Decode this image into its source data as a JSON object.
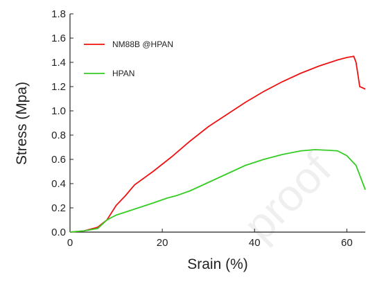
{
  "chart_data": {
    "type": "line",
    "x_label": "Srain (%)",
    "y_label": "Stress (Mpa)",
    "watermark": "proof",
    "xlim": [
      0,
      64
    ],
    "ylim": [
      0,
      1.8
    ],
    "xticks": [
      0,
      20,
      40,
      60
    ],
    "yticks": [
      {
        "value": 0,
        "label": "0.0"
      },
      0.2,
      0.4,
      0.6,
      0.8,
      {
        "value": 1,
        "label": "1.0"
      },
      1.2,
      1.4,
      1.6,
      1.8
    ],
    "series": [
      {
        "name": "NM88B @HPAN",
        "color": "#ee1111",
        "x": [
          0,
          3,
          6,
          8,
          10,
          12,
          14,
          18,
          22,
          26,
          30,
          34,
          38,
          42,
          46,
          50,
          54,
          58,
          60,
          61.5,
          62,
          62.8,
          64
        ],
        "values": [
          0,
          0.01,
          0.04,
          0.1,
          0.22,
          0.3,
          0.39,
          0.5,
          0.62,
          0.75,
          0.87,
          0.97,
          1.07,
          1.16,
          1.24,
          1.31,
          1.37,
          1.42,
          1.44,
          1.45,
          1.4,
          1.2,
          1.18
        ]
      },
      {
        "name": "HPAN",
        "color": "#33cc22",
        "x": [
          0,
          3,
          6,
          8,
          10,
          14,
          18,
          21,
          22,
          23,
          26,
          30,
          34,
          38,
          42,
          46,
          50,
          53,
          56,
          58,
          60,
          62,
          63,
          64
        ],
        "values": [
          0,
          0.01,
          0.03,
          0.1,
          0.14,
          0.19,
          0.24,
          0.28,
          0.29,
          0.3,
          0.34,
          0.41,
          0.48,
          0.55,
          0.6,
          0.64,
          0.67,
          0.68,
          0.675,
          0.67,
          0.63,
          0.55,
          0.45,
          0.35
        ]
      }
    ]
  }
}
